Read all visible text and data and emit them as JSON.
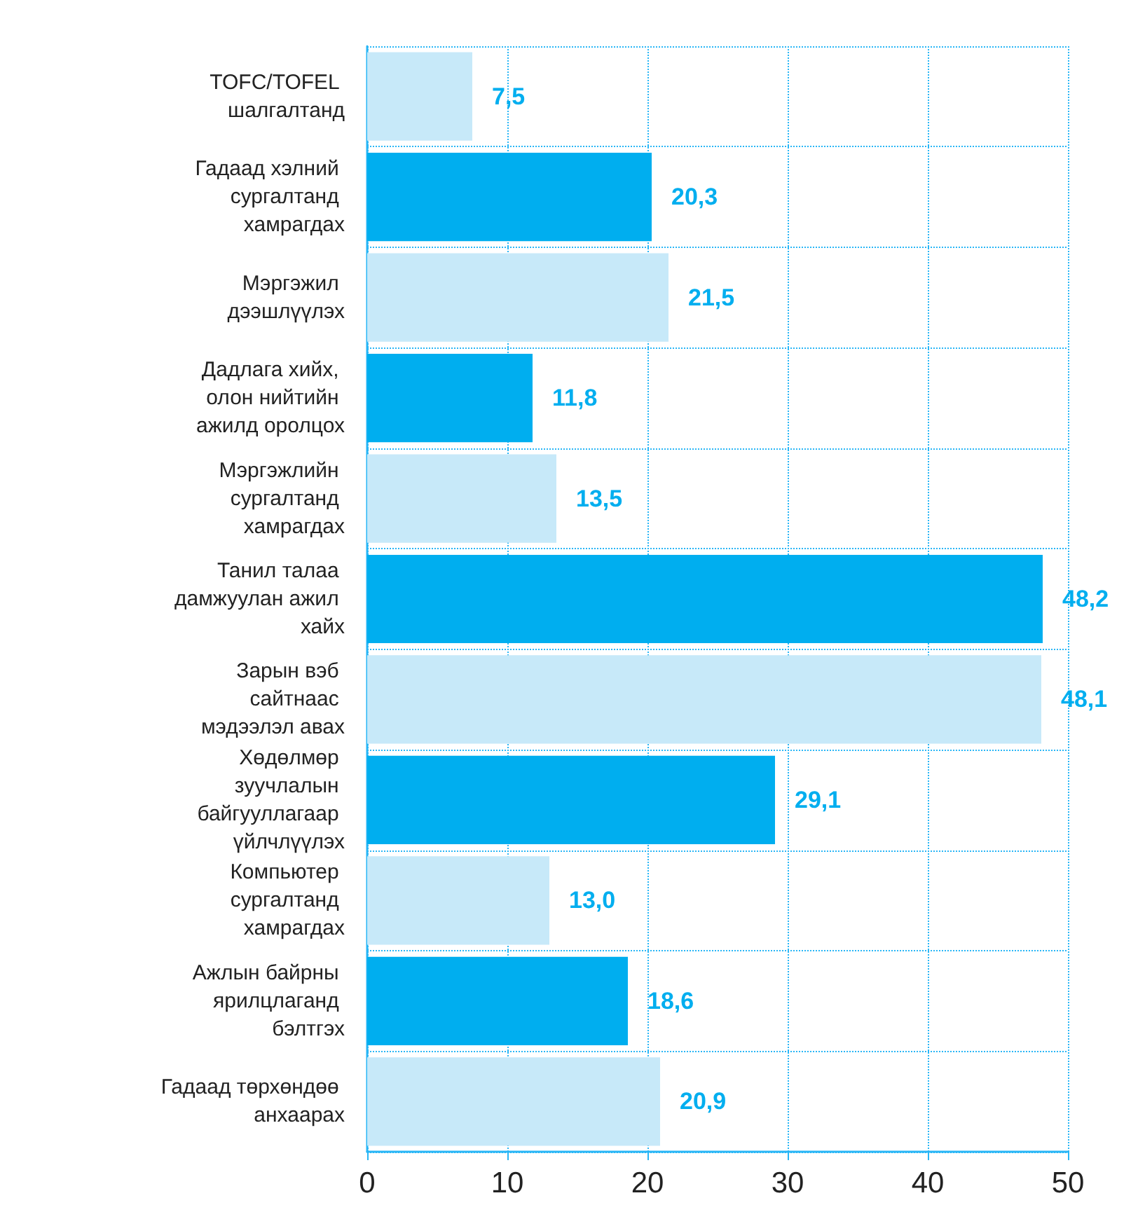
{
  "chart_data": {
    "type": "bar",
    "orientation": "horizontal",
    "categories": [
      "TOFC/TOFEL шалгалтанд",
      "Гадаад хэлний сургалтанд хамрагдах",
      "Мэргэжил дээшлүүлэх",
      "Дадлага хийх, олон нийтийн ажилд оролцох",
      "Мэргэжлийн сургалтанд хамрагдах",
      "Танил талаа дамжуулан ажил хайх",
      "Зарын вэб сайтнаас мэдээлэл авах",
      "Хөдөлмөр зуучлалын байгууллагаар үйлчлүүлэх",
      "Компьютер сургалтанд хамрагдах",
      "Ажлын байрны ярилцлаганд бэлтгэх",
      "Гадаад төрхөндөө анхаарах"
    ],
    "values": [
      7.5,
      20.3,
      21.5,
      11.8,
      13.5,
      48.2,
      48.1,
      29.1,
      13.0,
      18.6,
      20.9
    ],
    "value_labels": [
      "7,5",
      "20,3",
      "21,5",
      "11,8",
      "13,5",
      "48,2",
      "48,1",
      "29,1",
      "13,0",
      "18,6",
      "20,9"
    ],
    "colors": [
      "#c7e9f9",
      "#00aeef",
      "#c7e9f9",
      "#00aeef",
      "#c7e9f9",
      "#00aeef",
      "#c7e9f9",
      "#00aeef",
      "#c7e9f9",
      "#00aeef",
      "#c7e9f9"
    ],
    "xlim": [
      0,
      50
    ],
    "xticks": [
      0,
      10,
      20,
      30,
      40,
      50
    ],
    "grid": true
  }
}
